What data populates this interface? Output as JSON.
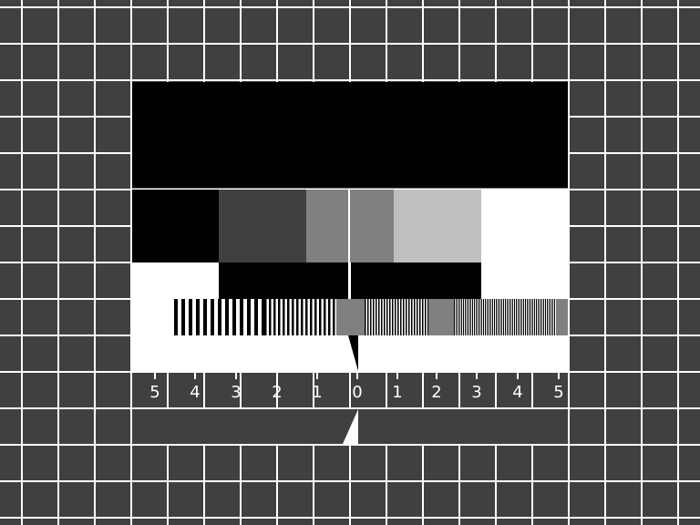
{
  "colors": {
    "background": "#404040",
    "grid_lines": "#ffffff",
    "black": "#000000",
    "white": "#ffffff",
    "dark_gray": "#404040",
    "mid_gray": "#808080",
    "light_gray": "#bfbfbf"
  },
  "gray_scale_steps": [
    "#000000",
    "#404040",
    "#808080",
    "#808080",
    "#bfbfbf",
    "#ffffff"
  ],
  "resolution_bursts": [
    {
      "id": "burst-1",
      "level": "low"
    },
    {
      "id": "burst-2",
      "level": "medium"
    },
    {
      "id": "burst-3",
      "level": "high"
    }
  ],
  "scale": {
    "left_labels": [
      "5",
      "4",
      "3",
      "2",
      "1"
    ],
    "center_label": "0",
    "right_labels": [
      "1",
      "2",
      "3",
      "4",
      "5"
    ]
  }
}
